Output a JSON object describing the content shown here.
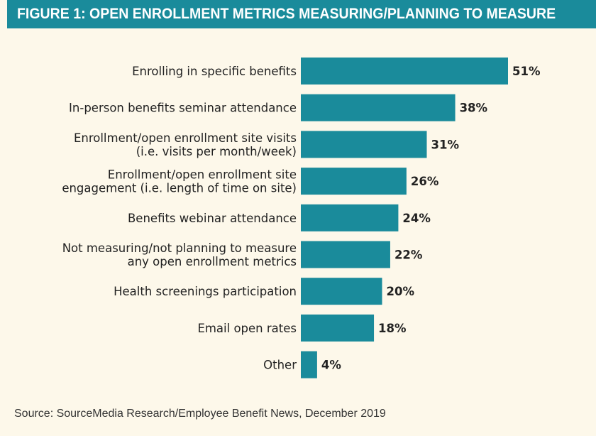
{
  "title": "FIGURE 1: OPEN ENROLLMENT METRICS MEASURING/PLANNING TO MEASURE",
  "source": "Source: SourceMedia Research/Employee Benefit News, December 2019",
  "colors": {
    "bar": "#1a8b9b",
    "title_bar": "#1a8b9b",
    "background": "#fdf8ea"
  },
  "chart_data": {
    "type": "bar",
    "orientation": "horizontal",
    "title": "FIGURE 1: OPEN ENROLLMENT METRICS MEASURING/PLANNING TO MEASURE",
    "categories": [
      [
        "Enrolling in specific benefits"
      ],
      [
        "In-person benefits seminar attendance"
      ],
      [
        "Enrollment/open enrollment site visits",
        "(i.e.  visits per month/week)"
      ],
      [
        "Enrollment/open enrollment site",
        "engagement (i.e. length of time on site)"
      ],
      [
        "Benefits webinar attendance"
      ],
      [
        "Not measuring/not planning to measure",
        "any open enrollment metrics"
      ],
      [
        "Health screenings participation"
      ],
      [
        "Email open rates"
      ],
      [
        "Other"
      ]
    ],
    "values": [
      51,
      38,
      31,
      26,
      24,
      22,
      20,
      18,
      4
    ],
    "value_labels": [
      "51%",
      "38%",
      "31%",
      "26%",
      "24%",
      "22%",
      "20%",
      "18%",
      "4%"
    ],
    "unit": "%",
    "xlim": [
      0,
      51
    ],
    "grid": false,
    "legend": "none"
  }
}
